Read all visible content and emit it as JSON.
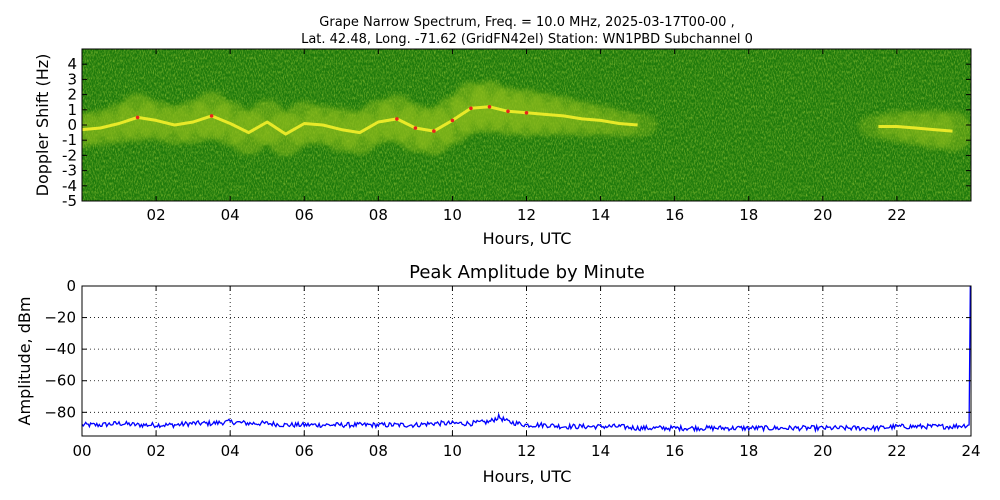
{
  "figure": {
    "title_line1": "Grape Narrow Spectrum, Freq. = 10.0 MHz, 2025-03-17T00-00 ,",
    "title_line2": "Lat.  42.48, Long. -71.62 (GridFN42el) Station: WN1PBD Subchannel 0"
  },
  "chart_data": [
    {
      "type": "heatmap",
      "xlabel": "Hours, UTC",
      "ylabel": "Doppler Shift (Hz)",
      "xlim": [
        0,
        24
      ],
      "ylim": [
        -5,
        5
      ],
      "x_ticks": [
        2,
        4,
        6,
        8,
        10,
        12,
        14,
        16,
        18,
        20,
        22
      ],
      "x_tick_labels": [
        "02",
        "04",
        "06",
        "08",
        "10",
        "12",
        "14",
        "16",
        "18",
        "20",
        "22"
      ],
      "y_ticks": [
        4,
        3,
        2,
        1,
        0,
        -1,
        -2,
        -3,
        -4,
        -5
      ],
      "y_tick_labels": [
        "4",
        "3",
        "2",
        "1",
        "0",
        "-1",
        "-2",
        "-3",
        "-4",
        "-5"
      ],
      "colors": {
        "background": "#1f7a0c",
        "mid": "#8fbf1a",
        "high": "#f5ef2a",
        "peak": "#e8231c"
      },
      "doppler_trace": {
        "hours": [
          0.0,
          0.5,
          1.0,
          1.5,
          2.0,
          2.5,
          3.0,
          3.5,
          4.0,
          4.5,
          5.0,
          5.5,
          6.0,
          6.5,
          7.0,
          7.5,
          8.0,
          8.5,
          9.0,
          9.5,
          10.0,
          10.5,
          11.0,
          11.5,
          12.0,
          12.5,
          13.0,
          13.5,
          14.0,
          14.5,
          15.0,
          21.5,
          22.0,
          22.5,
          23.0,
          23.5
        ],
        "doppler": [
          -0.3,
          -0.2,
          0.1,
          0.5,
          0.3,
          0.0,
          0.2,
          0.6,
          0.1,
          -0.5,
          0.2,
          -0.6,
          0.1,
          0.0,
          -0.3,
          -0.5,
          0.2,
          0.4,
          -0.2,
          -0.4,
          0.3,
          1.1,
          1.2,
          0.9,
          0.8,
          0.7,
          0.6,
          0.4,
          0.3,
          0.1,
          0.0,
          -0.1,
          -0.1,
          -0.2,
          -0.3,
          -0.4
        ],
        "strength": [
          0.6,
          0.6,
          0.7,
          0.9,
          0.7,
          0.7,
          0.8,
          0.9,
          0.8,
          0.8,
          0.8,
          0.8,
          0.8,
          0.7,
          0.8,
          0.8,
          0.8,
          0.9,
          0.9,
          0.9,
          0.9,
          1.0,
          1.0,
          0.9,
          0.9,
          0.8,
          0.7,
          0.6,
          0.5,
          0.4,
          0.3,
          0.3,
          0.5,
          0.6,
          0.7,
          0.7
        ]
      }
    },
    {
      "type": "line",
      "title": "Peak Amplitude by Minute",
      "xlabel": "Hours, UTC",
      "ylabel": "Amplitude, dBm",
      "xlim": [
        0,
        24
      ],
      "ylim": [
        -95,
        0
      ],
      "grid": true,
      "x_ticks": [
        0,
        2,
        4,
        6,
        8,
        10,
        12,
        14,
        16,
        18,
        20,
        22,
        24
      ],
      "x_tick_labels": [
        "00",
        "02",
        "04",
        "06",
        "08",
        "10",
        "12",
        "14",
        "16",
        "18",
        "20",
        "22",
        "24"
      ],
      "y_ticks": [
        0,
        -20,
        -40,
        -60,
        -80
      ],
      "y_tick_labels": [
        "0",
        "−20",
        "−40",
        "−60",
        "−80"
      ],
      "line_color": "#0000ff",
      "x": [
        0.0,
        0.5,
        1.0,
        1.5,
        2.0,
        2.5,
        3.0,
        3.5,
        4.0,
        4.5,
        5.0,
        5.5,
        6.0,
        6.5,
        7.0,
        7.5,
        8.0,
        8.5,
        9.0,
        9.5,
        10.0,
        10.5,
        11.0,
        11.25,
        11.5,
        12.0,
        12.5,
        13.0,
        13.5,
        14.0,
        14.5,
        15.0,
        15.5,
        16.0,
        16.5,
        17.0,
        17.5,
        18.0,
        18.5,
        19.0,
        19.5,
        20.0,
        20.5,
        21.0,
        21.5,
        22.0,
        22.5,
        23.0,
        23.5,
        23.95,
        23.98
      ],
      "y": [
        -88,
        -88,
        -87,
        -88,
        -88,
        -88,
        -87,
        -87,
        -86,
        -87,
        -87,
        -88,
        -88,
        -88,
        -88,
        -88,
        -88,
        -88,
        -88,
        -87,
        -87,
        -87,
        -86,
        -83,
        -86,
        -88,
        -88,
        -89,
        -89,
        -89,
        -89,
        -90,
        -90,
        -90,
        -90,
        -90,
        -90,
        -90,
        -90,
        -90,
        -90,
        -90,
        -90,
        -90,
        -90,
        -89,
        -89,
        -89,
        -89,
        -88,
        0
      ]
    }
  ]
}
